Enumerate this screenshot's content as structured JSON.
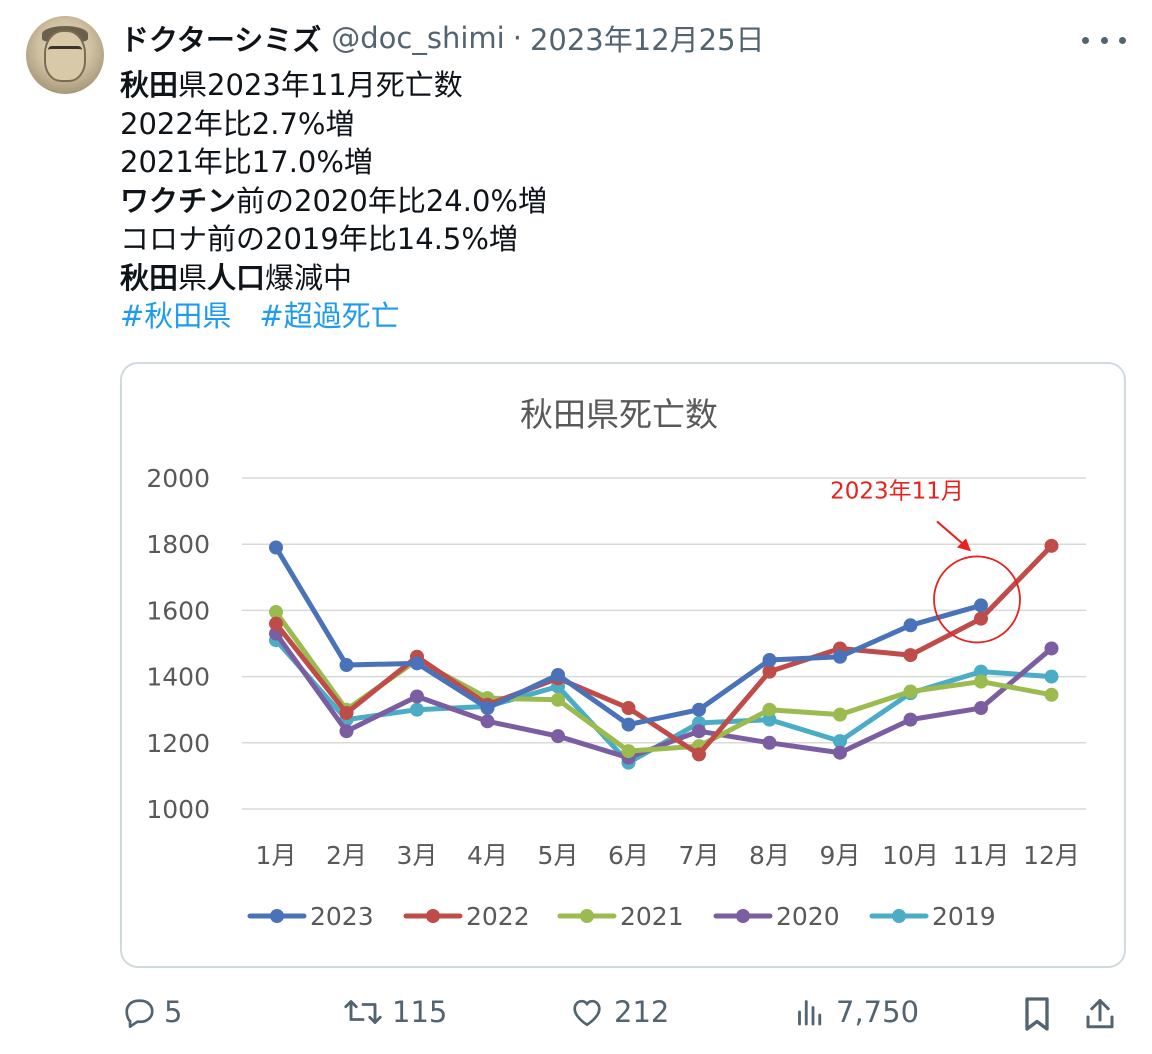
{
  "tweet": {
    "author_name": "ドクターシミズ",
    "handle": "@doc_shimi",
    "separator": "·",
    "date": "2023年12月25日",
    "lines": [
      [
        {
          "t": "秋田",
          "b": true
        },
        {
          "t": "県2023年11月死亡数",
          "b": false
        }
      ],
      [
        {
          "t": "2022年比2.7%増",
          "b": false
        }
      ],
      [
        {
          "t": "2021年比17.0%増",
          "b": false
        }
      ],
      [
        {
          "t": "ワクチン",
          "b": true
        },
        {
          "t": "前の2020年比24.0%増",
          "b": false
        }
      ],
      [
        {
          "t": "コロナ前の2019年比14.5%増",
          "b": false
        }
      ],
      [
        {
          "t": "秋田",
          "b": true
        },
        {
          "t": "県",
          "b": false
        },
        {
          "t": "人口",
          "b": true
        },
        {
          "t": "爆減中",
          "b": false
        }
      ]
    ],
    "hashtags": [
      "#秋田県",
      "#超過死亡"
    ]
  },
  "actions": {
    "replies": "5",
    "retweets": "115",
    "likes": "212",
    "views": "7,750"
  },
  "icons": {
    "avatar": "profile-photo",
    "more": "more-dots-icon",
    "reply": "reply-bubble-icon",
    "retweet": "retweet-icon",
    "like": "heart-icon",
    "views": "bar-chart-icon",
    "bookmark": "bookmark-icon",
    "share": "share-icon"
  },
  "colors": {
    "link": "#1d9bf0",
    "muted": "#536471",
    "annotation": "#e8221f"
  },
  "chart_data": {
    "type": "line",
    "title": "秋田県死亡数",
    "categories": [
      "1月",
      "2月",
      "3月",
      "4月",
      "5月",
      "6月",
      "7月",
      "8月",
      "9月",
      "10月",
      "11月",
      "12月"
    ],
    "ylim": [
      1000,
      2000
    ],
    "yticks": [
      "2000",
      "1800",
      "1600",
      "1400",
      "1200",
      "1000"
    ],
    "grid": true,
    "legend_position": "bottom",
    "annotation": {
      "text": "2023年11月",
      "category": "11月",
      "series": "2023"
    },
    "series": [
      {
        "name": "2023",
        "color": "#4a72b8",
        "values": [
          1790,
          1435,
          1440,
          1305,
          1405,
          1255,
          1300,
          1450,
          1460,
          1555,
          1615,
          null
        ]
      },
      {
        "name": "2022",
        "color": "#bf4c49",
        "values": [
          1560,
          1290,
          1460,
          1315,
          1395,
          1305,
          1165,
          1415,
          1485,
          1465,
          1575,
          1795
        ]
      },
      {
        "name": "2021",
        "color": "#9bbb4f",
        "values": [
          1595,
          1300,
          1450,
          1335,
          1330,
          1175,
          1190,
          1300,
          1285,
          1355,
          1385,
          1345
        ]
      },
      {
        "name": "2020",
        "color": "#7a5ea1",
        "values": [
          1530,
          1235,
          1340,
          1265,
          1220,
          1155,
          1235,
          1200,
          1170,
          1270,
          1305,
          1485
        ]
      },
      {
        "name": "2019",
        "color": "#4bacc6",
        "values": [
          1510,
          1270,
          1300,
          1310,
          1370,
          1140,
          1260,
          1270,
          1205,
          1350,
          1415,
          1400
        ]
      }
    ]
  }
}
